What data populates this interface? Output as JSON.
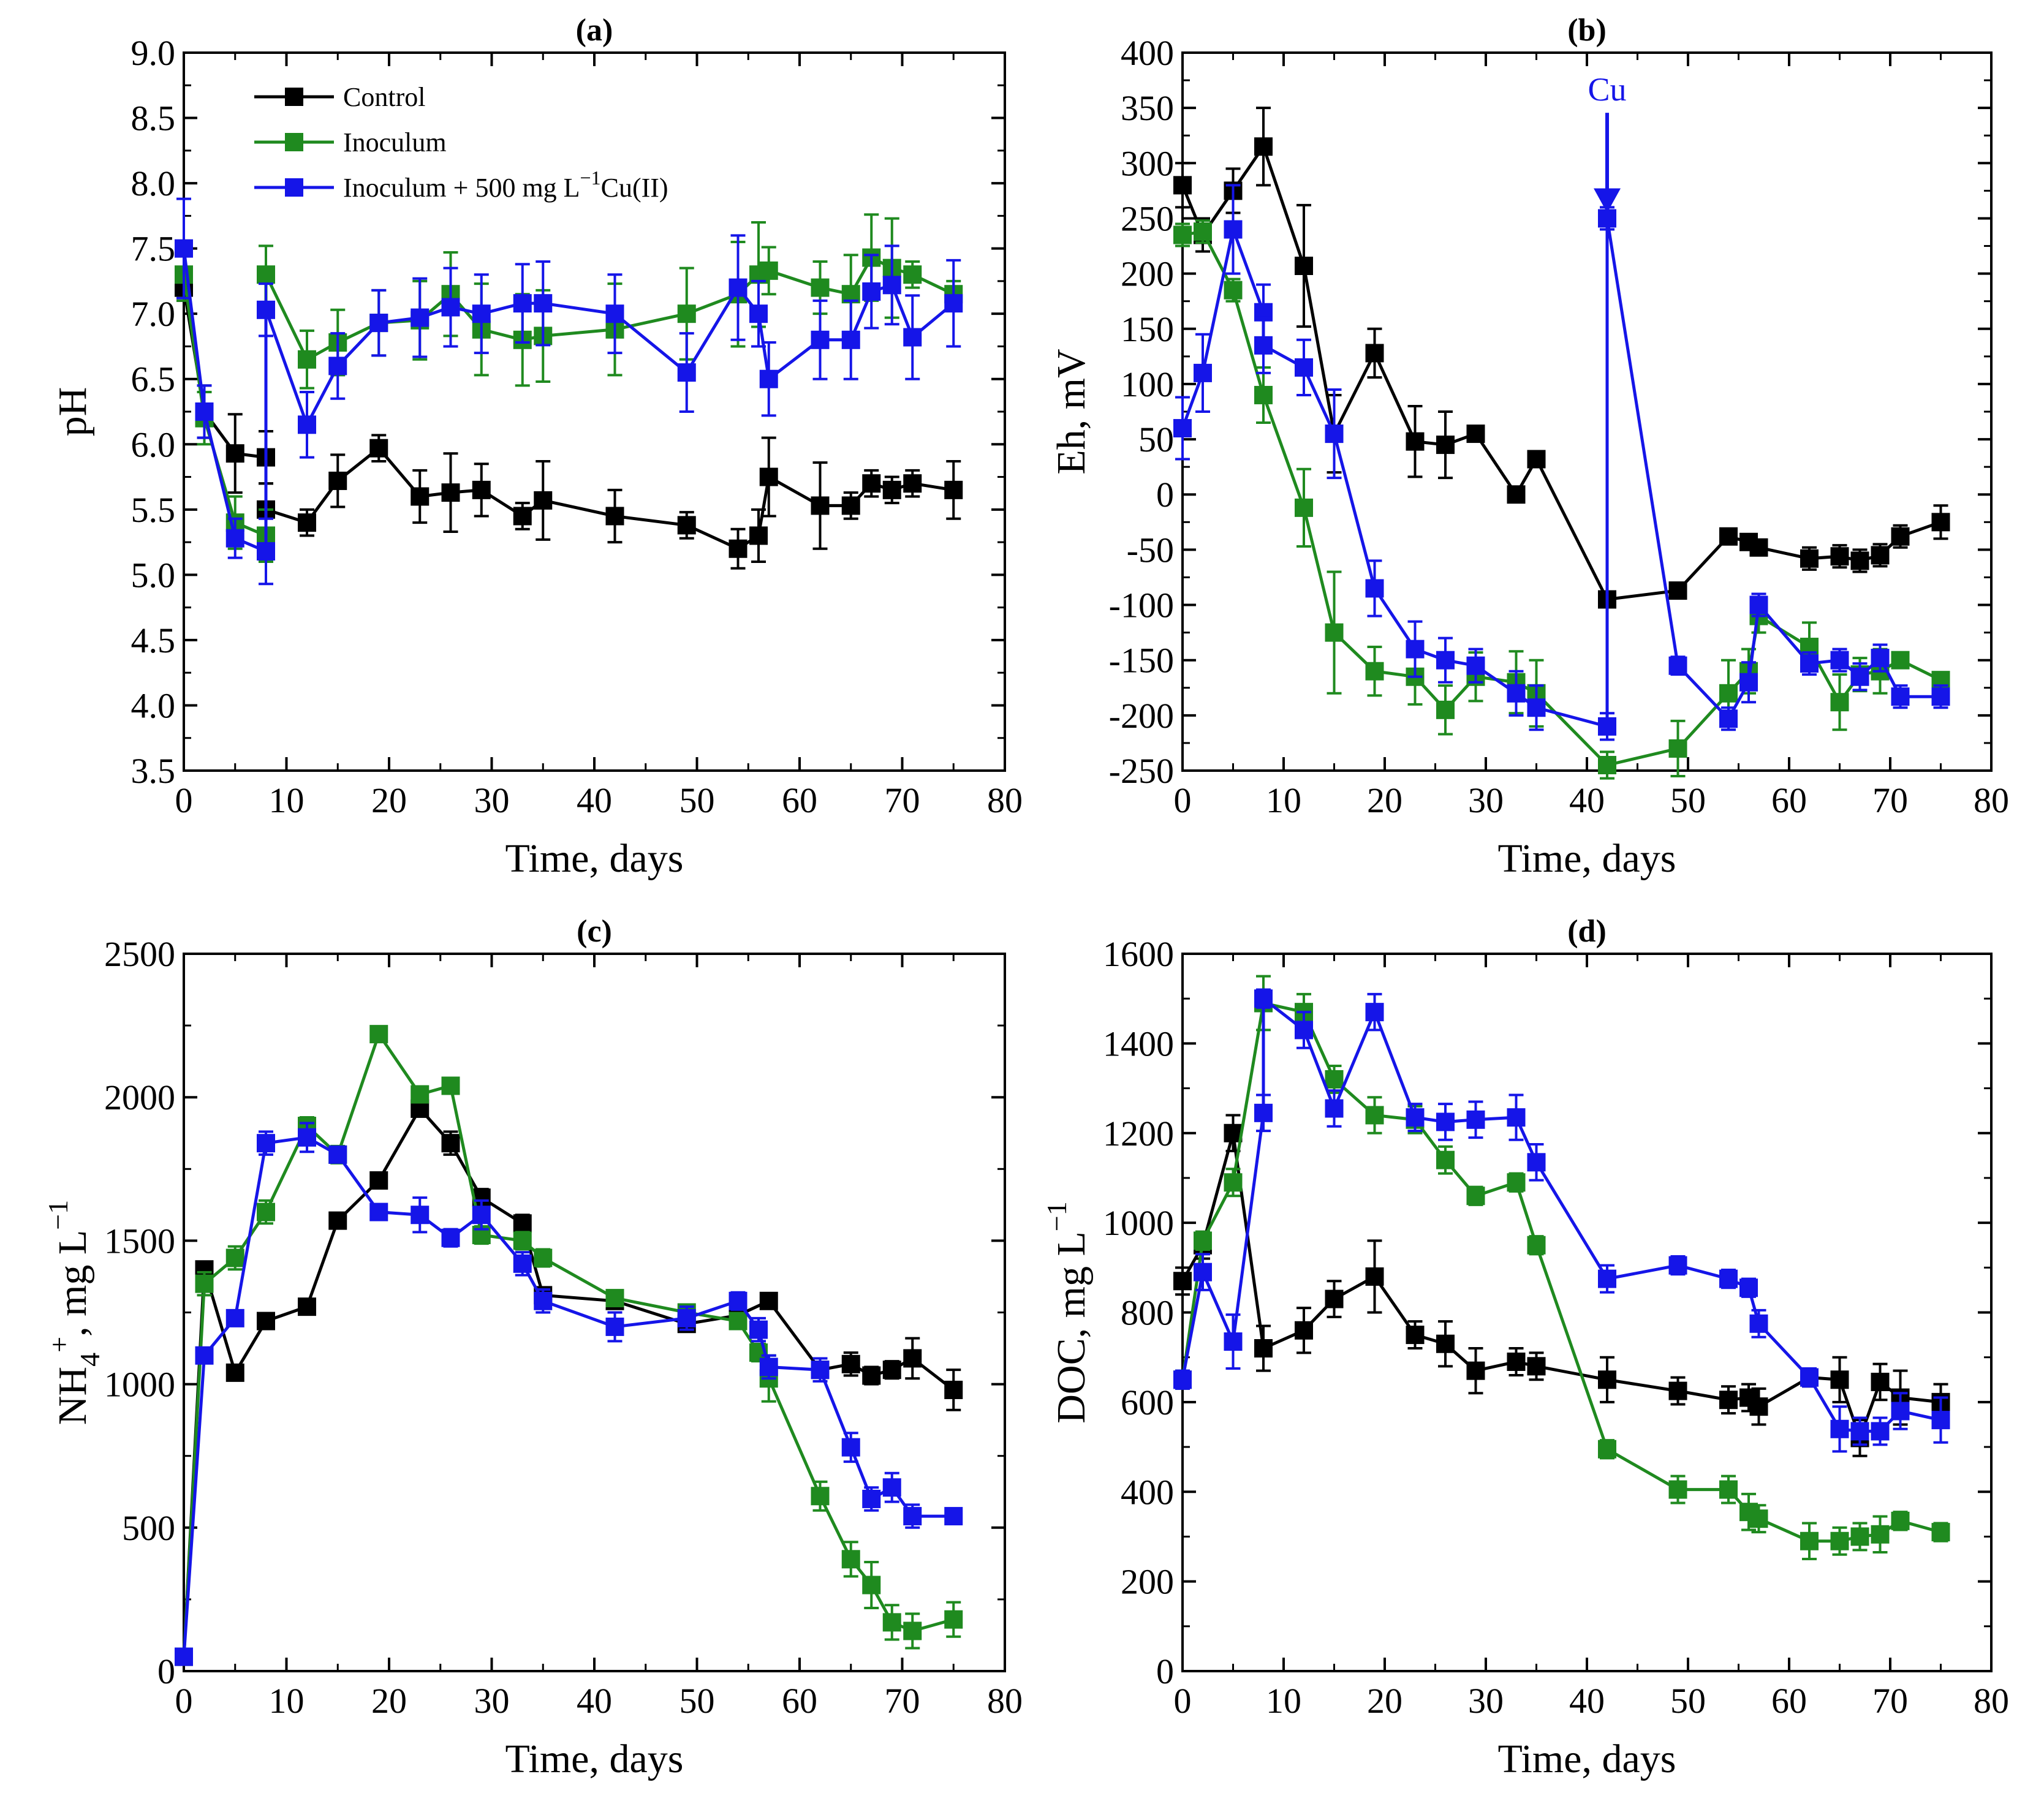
{
  "chart_data": [
    {
      "panel": "(a)",
      "type": "line",
      "xlabel": "Time, days",
      "ylabel": "pH",
      "xlim": [
        0,
        80
      ],
      "ylim": [
        3.5,
        9.0
      ],
      "xticks": [
        0,
        10,
        20,
        30,
        40,
        50,
        60,
        70,
        80
      ],
      "yticks": [
        3.5,
        4.0,
        4.5,
        5.0,
        5.5,
        6.0,
        6.5,
        7.0,
        7.5,
        8.0,
        8.5,
        9.0
      ],
      "ytick_labels": [
        "3.5",
        "4.0",
        "4.5",
        "5.0",
        "5.5",
        "6.0",
        "6.5",
        "7.0",
        "7.5",
        "8.0",
        "8.5",
        "9.0"
      ],
      "legend": {
        "placement": "top-left",
        "entries": [
          "Control",
          "Inoculum",
          "Inoculum + 500 mg L⁻¹Cu(II)"
        ]
      },
      "series": [
        {
          "name": "Control",
          "color": "#000000",
          "x": [
            0,
            2,
            5,
            8,
            8,
            12,
            15,
            19,
            23,
            26,
            29,
            33,
            35,
            42,
            49,
            54,
            56,
            57,
            62,
            65,
            67,
            69,
            71,
            75
          ],
          "y": [
            7.2,
            6.25,
            5.93,
            5.9,
            5.5,
            5.4,
            5.72,
            5.97,
            5.6,
            5.63,
            5.65,
            5.45,
            5.57,
            5.45,
            5.38,
            5.2,
            5.3,
            5.75,
            5.53,
            5.53,
            5.7,
            5.65,
            5.7,
            5.65
          ],
          "err": [
            0.1,
            0.2,
            0.3,
            0.2,
            0.2,
            0.1,
            0.2,
            0.1,
            0.2,
            0.3,
            0.2,
            0.1,
            0.3,
            0.2,
            0.1,
            0.15,
            0.2,
            0.3,
            0.33,
            0.1,
            0.1,
            0.1,
            0.1,
            0.22
          ]
        },
        {
          "name": "Inoculum",
          "color": "#1f8a1f",
          "x": [
            0,
            2,
            5,
            8,
            8,
            12,
            15,
            19,
            23,
            26,
            29,
            33,
            35,
            42,
            49,
            54,
            56,
            57,
            62,
            65,
            67,
            69,
            71,
            75
          ],
          "y": [
            7.3,
            6.2,
            5.4,
            5.3,
            7.3,
            6.65,
            6.78,
            6.93,
            6.95,
            7.15,
            6.88,
            6.8,
            6.83,
            6.88,
            7.0,
            7.15,
            7.3,
            7.33,
            7.2,
            7.15,
            7.43,
            7.35,
            7.3,
            7.15
          ],
          "err": [
            0.2,
            0.2,
            0.2,
            0.2,
            0.22,
            0.22,
            0.25,
            0.25,
            0.3,
            0.32,
            0.35,
            0.35,
            0.35,
            0.35,
            0.35,
            0.4,
            0.4,
            0.18,
            0.2,
            0.3,
            0.33,
            0.38,
            0.1,
            0.1
          ]
        },
        {
          "name": "Inoculum + 500 mg L⁻¹Cu(II)",
          "color": "#1515e8",
          "x": [
            0,
            2,
            5,
            8,
            8,
            12,
            15,
            19,
            23,
            26,
            29,
            33,
            35,
            42,
            49,
            54,
            56,
            57,
            62,
            65,
            67,
            69,
            71,
            75
          ],
          "y": [
            7.5,
            6.25,
            5.28,
            5.18,
            7.03,
            6.15,
            6.6,
            6.93,
            6.97,
            7.05,
            7.0,
            7.08,
            7.08,
            7.0,
            6.55,
            7.2,
            7.0,
            6.5,
            6.8,
            6.8,
            7.17,
            7.22,
            6.82,
            7.08
          ],
          "err": [
            0.38,
            0.2,
            0.15,
            0.25,
            0.2,
            0.25,
            0.25,
            0.25,
            0.3,
            0.3,
            0.3,
            0.3,
            0.32,
            0.3,
            0.3,
            0.4,
            0.25,
            0.28,
            0.3,
            0.3,
            0.28,
            0.3,
            0.32,
            0.33
          ]
        }
      ]
    },
    {
      "panel": "(b)",
      "type": "line",
      "xlabel": "Time, days",
      "ylabel": "Eh, mV",
      "xlim": [
        0,
        80
      ],
      "ylim": [
        -250,
        400
      ],
      "xticks": [
        0,
        10,
        20,
        30,
        40,
        50,
        60,
        70,
        80
      ],
      "yticks": [
        -250,
        -200,
        -150,
        -100,
        -50,
        0,
        50,
        100,
        150,
        200,
        250,
        300,
        350,
        400
      ],
      "annotation": {
        "text": "Cu",
        "x": 42,
        "y_from": 350,
        "y_to": 255
      },
      "series": [
        {
          "name": "Control",
          "color": "#000000",
          "x": [
            0,
            2,
            5,
            8,
            12,
            15,
            19,
            23,
            26,
            29,
            33,
            35,
            42,
            49,
            54,
            56,
            57,
            62,
            65,
            67,
            69,
            71,
            75
          ],
          "y": [
            280,
            235,
            275,
            315,
            207,
            55,
            128,
            48,
            45,
            55,
            0,
            32,
            -95,
            -87,
            -38,
            -43,
            -48,
            -58,
            -56,
            -60,
            -55,
            -38,
            -25
          ],
          "err": [
            20,
            15,
            20,
            35,
            55,
            35,
            22,
            32,
            30,
            5,
            5,
            5,
            5,
            5,
            5,
            5,
            5,
            10,
            10,
            10,
            10,
            10,
            15
          ]
        },
        {
          "name": "Inoculum",
          "color": "#1f8a1f",
          "x": [
            0,
            2,
            5,
            8,
            12,
            15,
            19,
            23,
            26,
            29,
            33,
            35,
            42,
            49,
            54,
            56,
            57,
            62,
            65,
            67,
            69,
            71,
            75
          ],
          "y": [
            235,
            238,
            185,
            90,
            -12,
            -125,
            -160,
            -165,
            -195,
            -165,
            -170,
            -180,
            -245,
            -230,
            -180,
            -160,
            -110,
            -138,
            -188,
            -163,
            -160,
            -150,
            -168
          ],
          "err": [
            10,
            10,
            10,
            25,
            35,
            55,
            22,
            25,
            22,
            22,
            28,
            30,
            12,
            25,
            30,
            20,
            15,
            22,
            25,
            15,
            20,
            5,
            5
          ]
        },
        {
          "name": "Inoculum + 500 mg L⁻¹Cu(II)",
          "color": "#1515e8",
          "x": [
            0,
            2,
            5,
            8,
            8,
            12,
            15,
            19,
            23,
            26,
            29,
            33,
            35,
            42,
            42,
            49,
            54,
            56,
            57,
            62,
            65,
            67,
            69,
            71,
            75
          ],
          "y": [
            60,
            110,
            240,
            165,
            135,
            115,
            55,
            -85,
            -140,
            -150,
            -155,
            -180,
            -193,
            -210,
            250,
            -155,
            -203,
            -170,
            -100,
            -153,
            -150,
            -165,
            -148,
            -183,
            -183
          ],
          "err": [
            28,
            35,
            40,
            25,
            25,
            25,
            40,
            25,
            25,
            20,
            15,
            20,
            20,
            12,
            10,
            8,
            10,
            18,
            10,
            10,
            10,
            12,
            12,
            10,
            10
          ]
        }
      ]
    },
    {
      "panel": "(c)",
      "type": "line",
      "xlabel": "Time, days",
      "ylabel": "NH4+, mg L−1",
      "xlim": [
        0,
        80
      ],
      "ylim": [
        0,
        2500
      ],
      "xticks": [
        0,
        10,
        20,
        30,
        40,
        50,
        60,
        70,
        80
      ],
      "yticks": [
        0,
        500,
        1000,
        1500,
        2000,
        2500
      ],
      "series": [
        {
          "name": "Control",
          "color": "#000000",
          "x": [
            0,
            2,
            5,
            8,
            12,
            15,
            19,
            23,
            26,
            29,
            33,
            35,
            42,
            49,
            54,
            57,
            62,
            65,
            67,
            69,
            71,
            75
          ],
          "y": [
            50,
            1400,
            1040,
            1220,
            1270,
            1570,
            1710,
            1960,
            1840,
            1650,
            1560,
            1310,
            1290,
            1210,
            1240,
            1290,
            1050,
            1070,
            1030,
            1050,
            1090,
            980
          ],
          "err": [
            20,
            20,
            20,
            20,
            20,
            20,
            20,
            20,
            40,
            30,
            30,
            20,
            20,
            20,
            20,
            20,
            20,
            40,
            30,
            30,
            70,
            70
          ]
        },
        {
          "name": "Inoculum",
          "color": "#1f8a1f",
          "x": [
            0,
            2,
            5,
            8,
            12,
            15,
            19,
            23,
            26,
            29,
            33,
            35,
            42,
            49,
            54,
            56,
            57,
            62,
            65,
            67,
            69,
            71,
            75
          ],
          "y": [
            50,
            1350,
            1440,
            1600,
            1900,
            1800,
            2220,
            2010,
            2040,
            1520,
            1500,
            1440,
            1300,
            1250,
            1220,
            1110,
            1020,
            610,
            390,
            300,
            170,
            140,
            180
          ],
          "err": [
            20,
            40,
            40,
            40,
            30,
            30,
            20,
            20,
            20,
            30,
            30,
            30,
            20,
            20,
            20,
            30,
            80,
            50,
            60,
            80,
            60,
            60,
            60
          ]
        },
        {
          "name": "Inoculum + 500 mg L⁻¹Cu(II)",
          "color": "#1515e8",
          "x": [
            0,
            2,
            5,
            8,
            12,
            15,
            19,
            23,
            26,
            29,
            33,
            35,
            42,
            49,
            54,
            56,
            57,
            62,
            65,
            67,
            69,
            71,
            75
          ],
          "y": [
            50,
            1100,
            1230,
            1840,
            1860,
            1800,
            1600,
            1590,
            1510,
            1590,
            1420,
            1290,
            1200,
            1230,
            1290,
            1190,
            1060,
            1050,
            780,
            600,
            640,
            540,
            540
          ],
          "err": [
            20,
            20,
            20,
            40,
            50,
            20,
            20,
            60,
            30,
            50,
            40,
            40,
            50,
            40,
            30,
            40,
            40,
            40,
            50,
            40,
            50,
            40,
            20
          ]
        }
      ]
    },
    {
      "panel": "(d)",
      "type": "line",
      "xlabel": "Time, days",
      "ylabel": "DOC, mg L−1",
      "xlim": [
        0,
        80
      ],
      "ylim": [
        0,
        1600
      ],
      "xticks": [
        0,
        10,
        20,
        30,
        40,
        50,
        60,
        70,
        80
      ],
      "yticks": [
        0,
        200,
        400,
        600,
        800,
        1000,
        1200,
        1400,
        1600
      ],
      "series": [
        {
          "name": "Control",
          "color": "#000000",
          "x": [
            0,
            2,
            5,
            8,
            12,
            15,
            19,
            23,
            26,
            29,
            33,
            35,
            42,
            49,
            54,
            56,
            57,
            62,
            65,
            67,
            69,
            71,
            75
          ],
          "y": [
            870,
            950,
            1200,
            720,
            760,
            830,
            880,
            750,
            730,
            670,
            690,
            680,
            650,
            625,
            605,
            610,
            590,
            655,
            650,
            520,
            645,
            610,
            600
          ],
          "err": [
            30,
            30,
            40,
            50,
            50,
            40,
            80,
            30,
            50,
            50,
            30,
            30,
            50,
            30,
            30,
            30,
            40,
            20,
            50,
            40,
            40,
            60,
            40
          ]
        },
        {
          "name": "Inoculum",
          "color": "#1f8a1f",
          "x": [
            0,
            2,
            5,
            8,
            12,
            15,
            19,
            23,
            26,
            29,
            33,
            35,
            42,
            49,
            54,
            56,
            57,
            62,
            65,
            67,
            69,
            71,
            75
          ],
          "y": [
            650,
            960,
            1090,
            1490,
            1470,
            1320,
            1240,
            1230,
            1140,
            1060,
            1090,
            950,
            495,
            405,
            405,
            355,
            340,
            290,
            290,
            300,
            305,
            335,
            310
          ],
          "err": [
            20,
            20,
            30,
            60,
            40,
            30,
            40,
            30,
            30,
            20,
            20,
            20,
            20,
            30,
            30,
            40,
            30,
            40,
            30,
            30,
            40,
            20,
            20
          ]
        },
        {
          "name": "Inoculum + 500 mg L⁻¹Cu(II)",
          "color": "#1515e8",
          "x": [
            0,
            2,
            5,
            8,
            8,
            12,
            15,
            19,
            23,
            26,
            29,
            33,
            35,
            42,
            49,
            54,
            56,
            57,
            62,
            65,
            67,
            69,
            71,
            75
          ],
          "y": [
            650,
            890,
            735,
            1245,
            1500,
            1430,
            1255,
            1470,
            1235,
            1225,
            1230,
            1235,
            1135,
            875,
            905,
            875,
            855,
            775,
            655,
            540,
            535,
            535,
            580,
            560
          ],
          "err": [
            20,
            40,
            60,
            40,
            20,
            40,
            40,
            40,
            30,
            40,
            40,
            50,
            40,
            30,
            20,
            20,
            20,
            30,
            20,
            50,
            30,
            30,
            40,
            50
          ]
        }
      ]
    }
  ]
}
